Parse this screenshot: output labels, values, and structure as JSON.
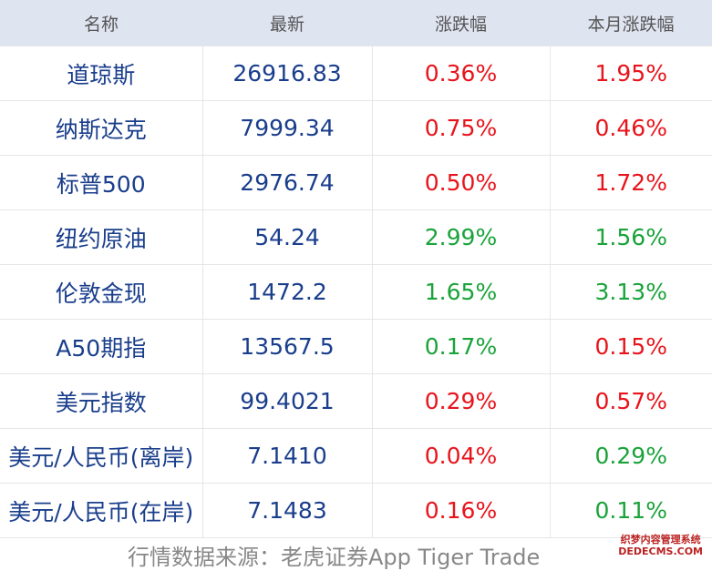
{
  "table": {
    "header": [
      "名称",
      "最新",
      "涨跌幅",
      "本月涨跌幅"
    ],
    "rows": [
      [
        {
          "text": "道琼斯"
        },
        {
          "text": "26916.83"
        },
        {
          "text": "0.36%",
          "color": "#e8141c"
        },
        {
          "text": "1.95%",
          "color": "#e8141c"
        }
      ],
      [
        {
          "text": "纳斯达克"
        },
        {
          "text": "7999.34"
        },
        {
          "text": "0.75%",
          "color": "#e8141c"
        },
        {
          "text": "0.46%",
          "color": "#e8141c"
        }
      ],
      [
        {
          "text": "标普500"
        },
        {
          "text": "2976.74"
        },
        {
          "text": "0.50%",
          "color": "#e8141c"
        },
        {
          "text": "1.72%",
          "color": "#e8141c"
        }
      ],
      [
        {
          "text": "纽约原油"
        },
        {
          "text": "54.24"
        },
        {
          "text": "2.99%",
          "color": "#1aa33a"
        },
        {
          "text": "1.56%",
          "color": "#1aa33a"
        }
      ],
      [
        {
          "text": "伦敦金现"
        },
        {
          "text": "1472.2"
        },
        {
          "text": "1.65%",
          "color": "#1aa33a"
        },
        {
          "text": "3.13%",
          "color": "#1aa33a"
        }
      ],
      [
        {
          "text": "A50期指"
        },
        {
          "text": "13567.5"
        },
        {
          "text": "0.17%",
          "color": "#1aa33a"
        },
        {
          "text": "0.15%",
          "color": "#e8141c"
        }
      ],
      [
        {
          "text": "美元指数"
        },
        {
          "text": "99.4021"
        },
        {
          "text": "0.29%",
          "color": "#e8141c"
        },
        {
          "text": "0.57%",
          "color": "#e8141c"
        }
      ],
      [
        {
          "text": "美元/人民币(离岸)"
        },
        {
          "text": "7.1410"
        },
        {
          "text": "0.04%",
          "color": "#e8141c"
        },
        {
          "text": "0.29%",
          "color": "#1aa33a"
        }
      ],
      [
        {
          "text": "美元/人民币(在岸)"
        },
        {
          "text": "7.1483"
        },
        {
          "text": "0.16%",
          "color": "#e8141c"
        },
        {
          "text": "0.11%",
          "color": "#1aa33a"
        }
      ]
    ]
  },
  "footer": {
    "source": "行情数据来源：老虎证券App Tiger Trade"
  },
  "watermark": {
    "line1": "织梦内容管理系统",
    "line2": "DEDECMS.COM"
  }
}
